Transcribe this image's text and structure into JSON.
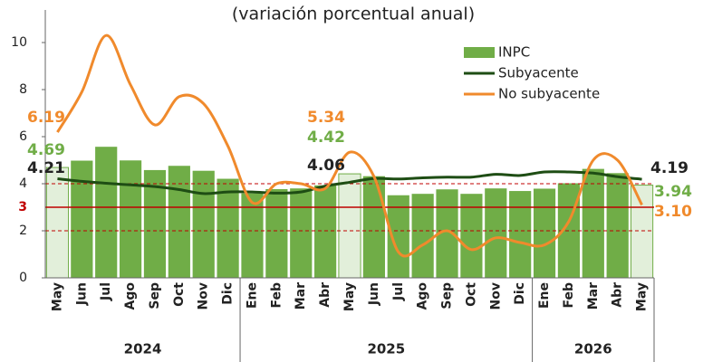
{
  "chart_data": {
    "type": "bar_line",
    "title": "(variación porcentual anual)",
    "categories": [
      "May",
      "Jun",
      "Jul",
      "Ago",
      "Sep",
      "Oct",
      "Nov",
      "Dic",
      "Ene",
      "Feb",
      "Mar",
      "Abr",
      "May",
      "Jun",
      "Jul",
      "Ago",
      "Sep",
      "Oct",
      "Nov",
      "Dic",
      "Ene",
      "Feb",
      "Mar",
      "Abr",
      "May"
    ],
    "groups": [
      {
        "label": "2024",
        "count": 8
      },
      {
        "label": "2025",
        "count": 12
      },
      {
        "label": "2026",
        "count": 5
      }
    ],
    "series": [
      {
        "name": "INPC",
        "type": "bar",
        "color": "#70ad47",
        "highlight_color": "#e2efda",
        "highlight_indices": [
          0,
          12,
          24
        ],
        "values": [
          4.69,
          4.98,
          5.57,
          4.99,
          4.58,
          4.76,
          4.55,
          4.21,
          3.59,
          3.77,
          3.8,
          3.93,
          4.42,
          4.32,
          3.51,
          3.57,
          3.76,
          3.57,
          3.8,
          3.69,
          3.79,
          4.02,
          4.63,
          4.45,
          3.94
        ],
        "value_labels": [
          "4.69",
          null,
          null,
          null,
          null,
          null,
          null,
          null,
          null,
          null,
          null,
          null,
          "4.42",
          null,
          null,
          null,
          null,
          null,
          null,
          null,
          null,
          null,
          null,
          null,
          "3.94"
        ]
      },
      {
        "name": "Subyacente",
        "type": "line",
        "color": "#1e4d14",
        "values": [
          4.21,
          4.1,
          4.02,
          3.95,
          3.88,
          3.75,
          3.58,
          3.65,
          3.65,
          3.6,
          3.65,
          3.9,
          4.06,
          4.22,
          4.2,
          4.25,
          4.28,
          4.28,
          4.4,
          4.35,
          4.5,
          4.5,
          4.45,
          4.3,
          4.19
        ],
        "value_labels": [
          "4.21",
          null,
          null,
          null,
          null,
          null,
          null,
          null,
          null,
          null,
          null,
          null,
          "4.06",
          null,
          null,
          null,
          null,
          null,
          null,
          null,
          null,
          null,
          null,
          null,
          "4.19"
        ]
      },
      {
        "name": "No subyacente",
        "type": "line",
        "color": "#f08a2c",
        "values": [
          6.19,
          7.9,
          10.3,
          8.2,
          6.5,
          7.7,
          7.4,
          5.6,
          3.2,
          4.0,
          4.0,
          3.8,
          5.34,
          4.3,
          1.1,
          1.4,
          2.0,
          1.2,
          1.7,
          1.5,
          1.4,
          2.4,
          5.0,
          5.0,
          3.1
        ],
        "value_labels": [
          "6.19",
          null,
          null,
          null,
          null,
          null,
          null,
          null,
          null,
          null,
          null,
          null,
          "5.34",
          null,
          null,
          null,
          null,
          null,
          null,
          null,
          null,
          null,
          null,
          null,
          "3.10"
        ]
      }
    ],
    "reference_lines": [
      {
        "value": 2,
        "style": "dashed"
      },
      {
        "value": 3,
        "style": "solid",
        "label": "3"
      },
      {
        "value": 4,
        "style": "dashed"
      }
    ],
    "reference_color": "#c00000",
    "ylim": [
      0,
      11
    ],
    "yticks": [
      0,
      2,
      4,
      6,
      8,
      10
    ],
    "legend": "upper right"
  }
}
